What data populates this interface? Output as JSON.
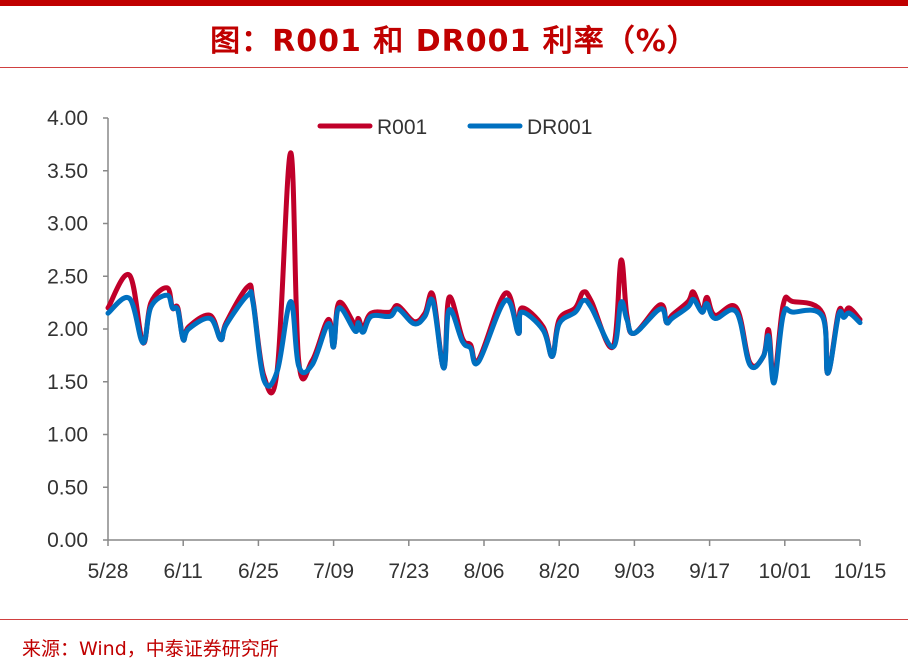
{
  "title": "图：R001 和 DR001 利率（%）",
  "source": "来源：Wind，中泰证券研究所",
  "colors": {
    "R001": "#c0002a",
    "DR001": "#0070c0",
    "accent": "#c00000"
  },
  "chart_data": {
    "type": "line",
    "title": "R001 和 DR001 利率（%）",
    "xlabel": "",
    "ylabel": "",
    "x_unit": "days since 5/28",
    "ylim": [
      0,
      4
    ],
    "xlim": [
      0,
      140
    ],
    "yticks": [
      "0.00",
      "0.50",
      "1.00",
      "1.50",
      "2.00",
      "2.50",
      "3.00",
      "3.50",
      "4.00"
    ],
    "xticks": [
      {
        "label": "5/28",
        "day": 0
      },
      {
        "label": "6/11",
        "day": 14
      },
      {
        "label": "6/25",
        "day": 28
      },
      {
        "label": "7/09",
        "day": 42
      },
      {
        "label": "7/23",
        "day": 56
      },
      {
        "label": "8/06",
        "day": 70
      },
      {
        "label": "8/20",
        "day": 84
      },
      {
        "label": "9/03",
        "day": 98
      },
      {
        "label": "9/17",
        "day": 112
      },
      {
        "label": "10/01",
        "day": 126
      },
      {
        "label": "10/15",
        "day": 140
      }
    ],
    "legend": {
      "position": "top-center",
      "entries": [
        "R001",
        "DR001"
      ]
    },
    "grid": false,
    "x": [
      0,
      4,
      6.5,
      8,
      11,
      12,
      13,
      14,
      15,
      19,
      21,
      22,
      26,
      27,
      29,
      31.5,
      34,
      35.5,
      38,
      41,
      42,
      43,
      46,
      46.6,
      47.5,
      49,
      52.5,
      54,
      57,
      59,
      60.5,
      62.5,
      63.5,
      66,
      67.5,
      69,
      74,
      76.4,
      77,
      81,
      82.7,
      84,
      87,
      88.5,
      90,
      94,
      95.5,
      96.6,
      98,
      102.8,
      104,
      105,
      108,
      109,
      110.6,
      111.5,
      113,
      117,
      119.5,
      122,
      123,
      124,
      125.7,
      127.5,
      133,
      134,
      136,
      137,
      138,
      140
    ],
    "series": [
      {
        "name": "R001",
        "values": [
          2.2,
          2.51,
          1.87,
          2.25,
          2.39,
          2.2,
          2.2,
          1.9,
          2.02,
          2.13,
          1.9,
          2.06,
          2.4,
          2.27,
          1.56,
          1.61,
          3.67,
          1.7,
          1.7,
          2.09,
          1.83,
          2.25,
          2.04,
          2.1,
          2.01,
          2.15,
          2.16,
          2.22,
          2.07,
          2.15,
          2.32,
          1.63,
          2.3,
          1.91,
          1.85,
          1.71,
          2.34,
          1.96,
          2.2,
          2.02,
          1.74,
          2.09,
          2.2,
          2.35,
          2.26,
          1.83,
          2.65,
          2.13,
          1.96,
          2.23,
          2.06,
          2.13,
          2.26,
          2.35,
          2.16,
          2.3,
          2.13,
          2.2,
          1.68,
          1.74,
          1.99,
          1.52,
          2.23,
          2.26,
          2.15,
          1.58,
          2.16,
          2.13,
          2.2,
          2.09
        ]
      },
      {
        "name": "DR001",
        "values": [
          2.15,
          2.29,
          1.87,
          2.21,
          2.32,
          2.2,
          2.18,
          1.9,
          2.0,
          2.1,
          1.9,
          2.04,
          2.32,
          2.25,
          1.52,
          1.6,
          2.26,
          1.65,
          1.66,
          2.05,
          1.83,
          2.2,
          1.98,
          2.06,
          1.97,
          2.12,
          2.12,
          2.19,
          2.05,
          2.12,
          2.26,
          1.63,
          2.18,
          1.88,
          1.82,
          1.69,
          2.27,
          1.96,
          2.16,
          1.99,
          1.74,
          2.05,
          2.16,
          2.27,
          2.2,
          1.83,
          2.25,
          2.09,
          1.96,
          2.19,
          2.06,
          2.1,
          2.21,
          2.28,
          2.16,
          2.24,
          2.1,
          2.16,
          1.66,
          1.74,
          1.93,
          1.49,
          2.13,
          2.16,
          2.12,
          1.58,
          2.13,
          2.11,
          2.15,
          2.06
        ]
      }
    ]
  }
}
